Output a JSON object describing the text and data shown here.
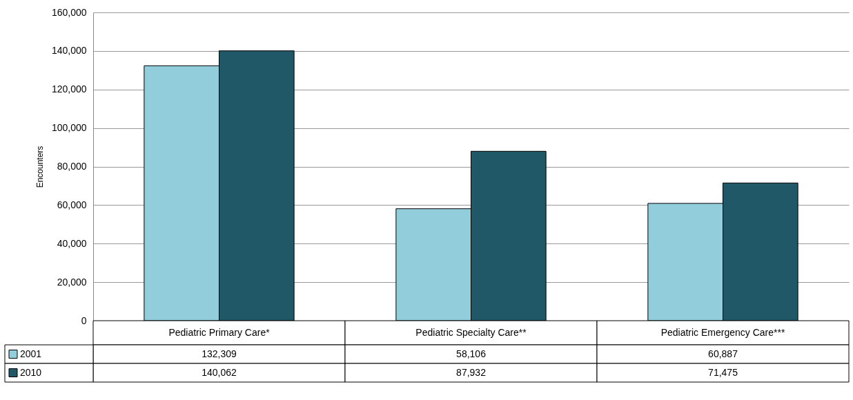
{
  "chart_data": {
    "type": "bar",
    "ylabel": "Encounters",
    "categories": [
      "Pediatric Primary Care*",
      "Pediatric Specialty Care**",
      "Pediatric Emergency Care***"
    ],
    "series": [
      {
        "name": "2001",
        "color": "#92cddc",
        "values": [
          132309,
          58106,
          60887
        ],
        "value_labels": [
          "132,309",
          "58,106",
          "60,887"
        ]
      },
      {
        "name": "2010",
        "color": "#215867",
        "values": [
          140062,
          87932,
          71475
        ],
        "value_labels": [
          "140,062",
          "87,932",
          "71,475"
        ]
      }
    ],
    "ylim": [
      0,
      160000
    ],
    "yticks": [
      0,
      {
        "value": 20000,
        "label": "20,000"
      },
      {
        "value": 40000,
        "label": "40,000"
      },
      {
        "value": 60000,
        "label": "60,000"
      },
      {
        "value": 80000,
        "label": "80,000"
      },
      {
        "value": 100000,
        "label": "100,000"
      },
      {
        "value": 120000,
        "label": "120,000"
      },
      {
        "value": 140000,
        "label": "140,000"
      },
      {
        "value": 160000,
        "label": "160,000"
      }
    ],
    "grid": "y",
    "legend": "bottom"
  }
}
